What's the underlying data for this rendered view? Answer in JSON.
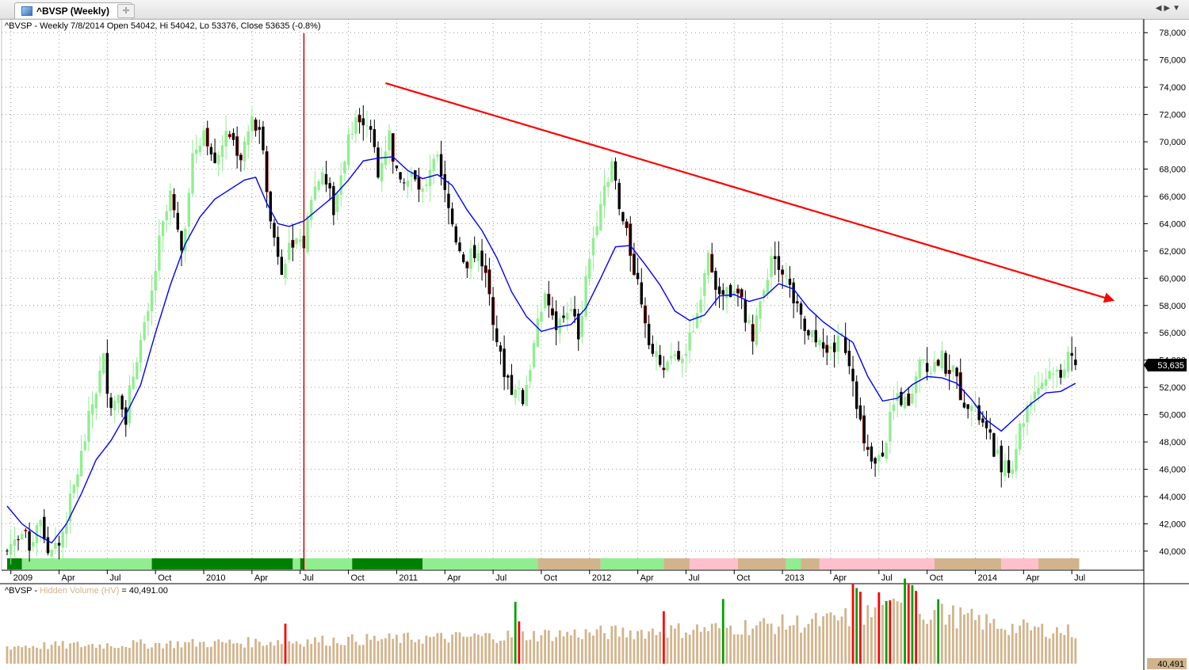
{
  "tab": {
    "title": "^BVSP (Weekly)"
  },
  "header": {
    "info": "^BVSP - Weekly 7/8/2014 Open 54042, Hi 54042, Lo 53376, Close 53635 (-0.8%)"
  },
  "volume_panel": {
    "prefix": "^BVSP - ",
    "indicator": "Hidden Volume (HV)",
    "suffix": " = 40,491.00",
    "last_label": "40,491"
  },
  "colors": {
    "up": "#90ee90",
    "down": "#000000",
    "ma": "#0000ff",
    "trend": "#ff0000",
    "marker": "#d00000",
    "vol": "#d2b48c",
    "vol_hi_down": "#ff0000",
    "vol_hi_up": "#00a000"
  },
  "chart_data": [
    {
      "type": "candlestick",
      "ylim": [
        38600,
        79000
      ],
      "y_ticks": [
        40000,
        42000,
        44000,
        46000,
        48000,
        50000,
        52000,
        54000,
        56000,
        58000,
        60000,
        62000,
        64000,
        66000,
        68000,
        70000,
        72000,
        74000,
        76000,
        78000
      ],
      "y_tick_labels": [
        "40,000",
        "42,000",
        "44,000",
        "46,000",
        "48,000",
        "50,000",
        "52,000",
        "54,000",
        "56,000",
        "58,000",
        "60,000",
        "62,000",
        "64,000",
        "66,000",
        "68,000",
        "70,000",
        "72,000",
        "74,000",
        "76,000",
        "78,000"
      ],
      "last_price_label": "53,635",
      "x_ticks": [
        {
          "label": "2009",
          "week": 1
        },
        {
          "label": "Apr",
          "week": 14
        },
        {
          "label": "Jul",
          "week": 27
        },
        {
          "label": "Oct",
          "week": 40
        },
        {
          "label": "2010",
          "week": 53
        },
        {
          "label": "Apr",
          "week": 66
        },
        {
          "label": "Jul",
          "week": 79
        },
        {
          "label": "Oct",
          "week": 92
        },
        {
          "label": "2011",
          "week": 105
        },
        {
          "label": "Apr",
          "week": 118
        },
        {
          "label": "Jul",
          "week": 131
        },
        {
          "label": "Oct",
          "week": 144
        },
        {
          "label": "2012",
          "week": 157
        },
        {
          "label": "Apr",
          "week": 170
        },
        {
          "label": "Jul",
          "week": 183
        },
        {
          "label": "Oct",
          "week": 196
        },
        {
          "label": "2013",
          "week": 209
        },
        {
          "label": "Apr",
          "week": 222
        },
        {
          "label": "Jul",
          "week": 235
        },
        {
          "label": "Oct",
          "week": 248
        },
        {
          "label": "2014",
          "week": 261
        },
        {
          "label": "Apr",
          "week": 274
        },
        {
          "label": "Jul",
          "week": 287
        }
      ],
      "close_path": [
        [
          0,
          40000
        ],
        [
          3,
          41500
        ],
        [
          6,
          40500
        ],
        [
          9,
          42500
        ],
        [
          11,
          40000
        ],
        [
          14,
          40500
        ],
        [
          17,
          43500
        ],
        [
          20,
          47000
        ],
        [
          23,
          50800
        ],
        [
          26,
          54000
        ],
        [
          28,
          50500
        ],
        [
          30,
          52000
        ],
        [
          32,
          50000
        ],
        [
          35,
          54500
        ],
        [
          38,
          57000
        ],
        [
          41,
          62500
        ],
        [
          44,
          66000
        ],
        [
          47,
          62000
        ],
        [
          50,
          69000
        ],
        [
          53,
          71000
        ],
        [
          56,
          69000
        ],
        [
          60,
          70500
        ],
        [
          63,
          69000
        ],
        [
          66,
          71500
        ],
        [
          69,
          70000
        ],
        [
          71,
          64000
        ],
        [
          74,
          61000
        ],
        [
          77,
          63000
        ],
        [
          80,
          62500
        ],
        [
          82,
          66000
        ],
        [
          85,
          68000
        ],
        [
          88,
          65000
        ],
        [
          91,
          69000
        ],
        [
          94,
          72500
        ],
        [
          97,
          71500
        ],
        [
          100,
          68000
        ],
        [
          103,
          70500
        ],
        [
          106,
          66500
        ],
        [
          109,
          67500
        ],
        [
          112,
          66000
        ],
        [
          115,
          69500
        ],
        [
          118,
          66000
        ],
        [
          121,
          63000
        ],
        [
          124,
          61000
        ],
        [
          127,
          62500
        ],
        [
          130,
          59000
        ],
        [
          133,
          54000
        ],
        [
          136,
          52000
        ],
        [
          139,
          51000
        ],
        [
          142,
          55000
        ],
        [
          145,
          59000
        ],
        [
          148,
          56000
        ],
        [
          151,
          58000
        ],
        [
          154,
          56000
        ],
        [
          157,
          61500
        ],
        [
          160,
          66000
        ],
        [
          163,
          68500
        ],
        [
          165,
          65000
        ],
        [
          168,
          62000
        ],
        [
          171,
          58500
        ],
        [
          174,
          54500
        ],
        [
          177,
          53000
        ],
        [
          180,
          54000
        ],
        [
          183,
          54500
        ],
        [
          186,
          57500
        ],
        [
          189,
          62500
        ],
        [
          192,
          58500
        ],
        [
          195,
          59000
        ],
        [
          198,
          58000
        ],
        [
          201,
          55500
        ],
        [
          204,
          59500
        ],
        [
          207,
          62000
        ],
        [
          210,
          60000
        ],
        [
          213,
          57500
        ],
        [
          216,
          55500
        ],
        [
          219,
          56000
        ],
        [
          222,
          54500
        ],
        [
          225,
          56000
        ],
        [
          228,
          53000
        ],
        [
          231,
          47500
        ],
        [
          234,
          46000
        ],
        [
          237,
          48500
        ],
        [
          240,
          51500
        ],
        [
          243,
          50500
        ],
        [
          246,
          54500
        ],
        [
          249,
          53500
        ],
        [
          252,
          54000
        ],
        [
          255,
          53000
        ],
        [
          258,
          51000
        ],
        [
          261,
          50500
        ],
        [
          264,
          48500
        ],
        [
          267,
          47000
        ],
        [
          270,
          45500
        ],
        [
          273,
          49000
        ],
        [
          276,
          51500
        ],
        [
          279,
          52500
        ],
        [
          282,
          53500
        ],
        [
          284,
          52500
        ],
        [
          286,
          54800
        ],
        [
          288,
          53635
        ]
      ],
      "ma_path": [
        [
          0,
          43300
        ],
        [
          4,
          42000
        ],
        [
          8,
          41200
        ],
        [
          12,
          40600
        ],
        [
          16,
          42000
        ],
        [
          20,
          44200
        ],
        [
          24,
          46700
        ],
        [
          28,
          48100
        ],
        [
          32,
          50000
        ],
        [
          36,
          52200
        ],
        [
          40,
          56000
        ],
        [
          44,
          59500
        ],
        [
          48,
          62500
        ],
        [
          52,
          64500
        ],
        [
          56,
          65800
        ],
        [
          60,
          66500
        ],
        [
          64,
          67200
        ],
        [
          67,
          67400
        ],
        [
          70,
          65500
        ],
        [
          73,
          64000
        ],
        [
          76,
          63800
        ],
        [
          80,
          64200
        ],
        [
          84,
          65100
        ],
        [
          88,
          66000
        ],
        [
          92,
          67200
        ],
        [
          96,
          68600
        ],
        [
          100,
          68800
        ],
        [
          104,
          68900
        ],
        [
          108,
          67900
        ],
        [
          112,
          67300
        ],
        [
          116,
          67600
        ],
        [
          120,
          66800
        ],
        [
          124,
          65000
        ],
        [
          128,
          63500
        ],
        [
          132,
          61500
        ],
        [
          136,
          59000
        ],
        [
          140,
          57200
        ],
        [
          144,
          56100
        ],
        [
          148,
          56400
        ],
        [
          152,
          56600
        ],
        [
          156,
          57800
        ],
        [
          160,
          60000
        ],
        [
          164,
          62300
        ],
        [
          168,
          62400
        ],
        [
          172,
          61000
        ],
        [
          176,
          59500
        ],
        [
          180,
          57600
        ],
        [
          184,
          56900
        ],
        [
          188,
          57300
        ],
        [
          192,
          58700
        ],
        [
          196,
          58800
        ],
        [
          200,
          58300
        ],
        [
          204,
          58600
        ],
        [
          208,
          59600
        ],
        [
          212,
          59200
        ],
        [
          216,
          57800
        ],
        [
          220,
          56800
        ],
        [
          224,
          56000
        ],
        [
          228,
          55300
        ],
        [
          232,
          52800
        ],
        [
          236,
          51000
        ],
        [
          240,
          51200
        ],
        [
          244,
          52200
        ],
        [
          248,
          52800
        ],
        [
          252,
          52700
        ],
        [
          256,
          52300
        ],
        [
          260,
          51100
        ],
        [
          264,
          49600
        ],
        [
          268,
          48800
        ],
        [
          272,
          49800
        ],
        [
          276,
          50800
        ],
        [
          280,
          51600
        ],
        [
          284,
          51700
        ],
        [
          288,
          52300
        ]
      ],
      "trend_line": {
        "from": [
          102,
          74300
        ],
        "to": [
          298,
          58400
        ]
      },
      "vertical_marker_week": 80,
      "regime_bar": [
        {
          "from": 0,
          "to": 4,
          "state": "dark-green"
        },
        {
          "from": 4,
          "to": 39,
          "state": "light-green"
        },
        {
          "from": 39,
          "to": 77,
          "state": "dark-green"
        },
        {
          "from": 77,
          "to": 79,
          "state": "light-green"
        },
        {
          "from": 79,
          "to": 80,
          "state": "dark-green"
        },
        {
          "from": 80,
          "to": 93,
          "state": "light-green"
        },
        {
          "from": 93,
          "to": 112,
          "state": "dark-green"
        },
        {
          "from": 112,
          "to": 143,
          "state": "light-green"
        },
        {
          "from": 143,
          "to": 160,
          "state": "tan"
        },
        {
          "from": 160,
          "to": 177,
          "state": "light-green"
        },
        {
          "from": 177,
          "to": 184,
          "state": "tan"
        },
        {
          "from": 184,
          "to": 197,
          "state": "pink"
        },
        {
          "from": 197,
          "to": 210,
          "state": "tan"
        },
        {
          "from": 210,
          "to": 214,
          "state": "light-green"
        },
        {
          "from": 214,
          "to": 219,
          "state": "tan"
        },
        {
          "from": 219,
          "to": 250,
          "state": "pink"
        },
        {
          "from": 250,
          "to": 268,
          "state": "tan"
        },
        {
          "from": 268,
          "to": 278,
          "state": "pink"
        },
        {
          "from": 278,
          "to": 289,
          "state": "tan"
        }
      ]
    },
    {
      "type": "bar",
      "title": "Hidden Volume (HV)",
      "last_value": 40491,
      "profile": [
        [
          0,
          0.2
        ],
        [
          60,
          0.24
        ],
        [
          120,
          0.3
        ],
        [
          180,
          0.38
        ],
        [
          220,
          0.48
        ],
        [
          240,
          0.62
        ],
        [
          255,
          0.55
        ],
        [
          270,
          0.42
        ],
        [
          289,
          0.36
        ]
      ],
      "highlight_weeks": [
        {
          "week": 75,
          "scale": 1.8,
          "kind": "down"
        },
        {
          "week": 137,
          "scale": 2.2,
          "kind": "up"
        },
        {
          "week": 138,
          "scale": 1.5,
          "kind": "down"
        },
        {
          "week": 177,
          "scale": 1.6,
          "kind": "down"
        },
        {
          "week": 193,
          "scale": 1.8,
          "kind": "up"
        },
        {
          "week": 228,
          "scale": 1.7,
          "kind": "down"
        },
        {
          "week": 229,
          "scale": 1.6,
          "kind": "up"
        },
        {
          "week": 230,
          "scale": 1.5,
          "kind": "down"
        },
        {
          "week": 235,
          "scale": 1.4,
          "kind": "down"
        },
        {
          "week": 237,
          "scale": 1.2,
          "kind": "up"
        },
        {
          "week": 238,
          "scale": 1.2,
          "kind": "down"
        },
        {
          "week": 242,
          "scale": 1.6,
          "kind": "up"
        },
        {
          "week": 243,
          "scale": 1.5,
          "kind": "down"
        },
        {
          "week": 244,
          "scale": 1.5,
          "kind": "up"
        },
        {
          "week": 245,
          "scale": 1.4,
          "kind": "down"
        },
        {
          "week": 251,
          "scale": 1.3,
          "kind": "up"
        }
      ]
    }
  ]
}
